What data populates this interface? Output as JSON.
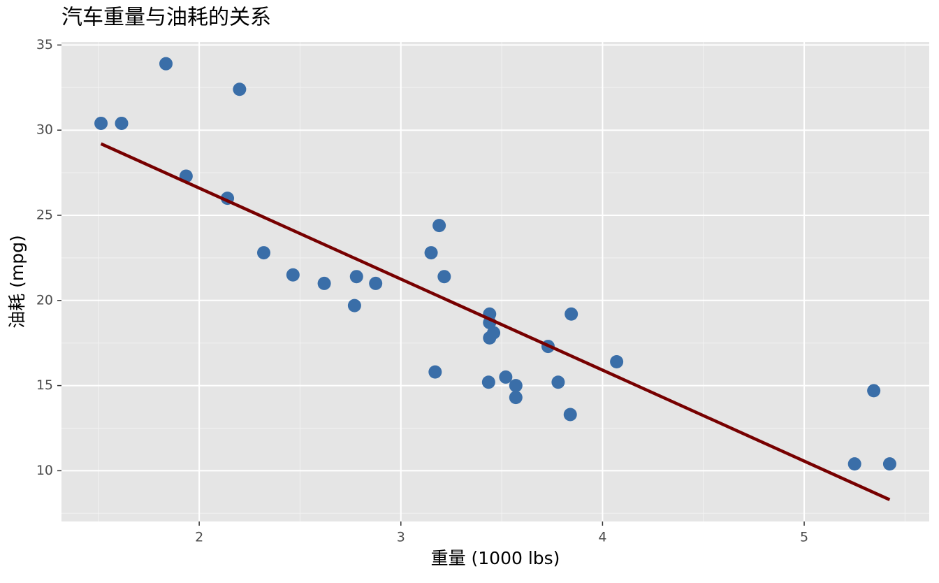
{
  "chart_data": {
    "type": "scatter",
    "title": "汽车重量与油耗的关系",
    "x_label": "重量 (1000 lbs)",
    "y_label": "油耗 (mpg)",
    "series": [
      {
        "color": "#3a6ea8",
        "x": [
          2.62,
          2.875,
          2.32,
          3.215,
          3.44,
          3.46,
          3.57,
          3.19,
          3.15,
          3.44,
          3.44,
          4.07,
          3.73,
          3.78,
          5.25,
          5.424,
          5.345,
          2.2,
          1.615,
          1.835,
          2.465,
          3.52,
          3.435,
          3.84,
          3.845,
          1.935,
          2.14,
          1.513,
          3.17,
          2.77,
          3.57,
          2.78
        ],
        "values": [
          21,
          21,
          22.8,
          21.4,
          18.7,
          18.1,
          14.3,
          24.4,
          22.8,
          19.2,
          17.8,
          16.4,
          17.3,
          15.2,
          10.4,
          10.4,
          14.7,
          32.4,
          30.4,
          33.9,
          21.5,
          15.5,
          15.2,
          13.3,
          19.2,
          27.3,
          26,
          30.4,
          15.8,
          19.7,
          15,
          21.4
        ]
      }
    ],
    "trend": {
      "color": "#770000",
      "x": [
        1.513,
        5.424
      ],
      "values": [
        29.2,
        8.3
      ]
    },
    "xlim": [
      1.317,
      5.62
    ],
    "xticks": [
      2,
      3,
      4,
      5
    ],
    "x_minor_grid": [
      1.5,
      2.5,
      3.5,
      4.5,
      5.5
    ],
    "ylim": [
      7.02,
      35.18
    ],
    "yticks": [
      10,
      15,
      20,
      25,
      30,
      35
    ],
    "y_minor_grid": [
      7.5,
      12.5,
      17.5,
      22.5,
      27.5,
      32.5
    ],
    "grid": true
  }
}
